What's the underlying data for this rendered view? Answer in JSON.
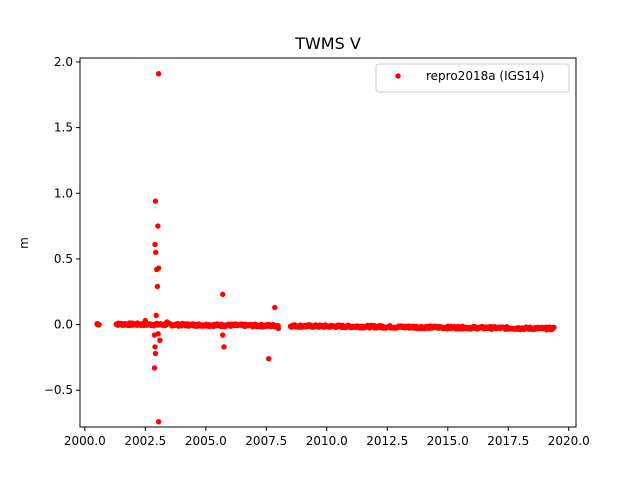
{
  "chart_data": {
    "type": "scatter",
    "title": "TWMS V",
    "xlabel": "",
    "ylabel": "m",
    "xlim": [
      1999.8,
      2020.3
    ],
    "ylim": [
      -0.78,
      2.03
    ],
    "x_ticks": [
      2000.0,
      2002.5,
      2005.0,
      2007.5,
      2010.0,
      2012.5,
      2015.0,
      2017.5,
      2020.0
    ],
    "x_tick_labels": [
      "2000.0",
      "2002.5",
      "2005.0",
      "2007.5",
      "2010.0",
      "2012.5",
      "2015.0",
      "2017.5",
      "2020.0"
    ],
    "y_ticks": [
      -0.5,
      0.0,
      0.5,
      1.0,
      1.5,
      2.0
    ],
    "y_tick_labels": [
      "−0.5",
      "0.0",
      "0.5",
      "1.0",
      "1.5",
      "2.0"
    ],
    "grid": false,
    "legend_position": "top-right",
    "series": [
      {
        "name": "repro2018a (IGS14)",
        "color": "#ff0000",
        "marker": "circle",
        "trend": {
          "segments": [
            [
              2000.5,
              2000.6
            ],
            [
              2001.3,
              2008.0
            ],
            [
              2008.5,
              2019.4
            ]
          ],
          "y_start": 0.005,
          "y_end": -0.03
        },
        "outliers": [
          {
            "x": 2003.05,
            "y": 1.91
          },
          {
            "x": 2002.92,
            "y": 0.94
          },
          {
            "x": 2003.02,
            "y": 0.75
          },
          {
            "x": 2002.9,
            "y": 0.61
          },
          {
            "x": 2002.93,
            "y": 0.55
          },
          {
            "x": 2002.97,
            "y": 0.42
          },
          {
            "x": 2003.05,
            "y": 0.43
          },
          {
            "x": 2003.0,
            "y": 0.29
          },
          {
            "x": 2002.95,
            "y": 0.07
          },
          {
            "x": 2002.88,
            "y": -0.08
          },
          {
            "x": 2003.03,
            "y": -0.07
          },
          {
            "x": 2003.1,
            "y": -0.12
          },
          {
            "x": 2002.9,
            "y": -0.17
          },
          {
            "x": 2002.92,
            "y": -0.22
          },
          {
            "x": 2002.88,
            "y": -0.33
          },
          {
            "x": 2003.05,
            "y": -0.74
          },
          {
            "x": 2005.7,
            "y": 0.23
          },
          {
            "x": 2005.7,
            "y": -0.08
          },
          {
            "x": 2005.75,
            "y": -0.17
          },
          {
            "x": 2007.85,
            "y": 0.13
          },
          {
            "x": 2007.6,
            "y": -0.26
          },
          {
            "x": 2008.0,
            "y": -0.03
          },
          {
            "x": 2002.5,
            "y": 0.03
          },
          {
            "x": 2003.4,
            "y": 0.02
          }
        ]
      }
    ]
  }
}
